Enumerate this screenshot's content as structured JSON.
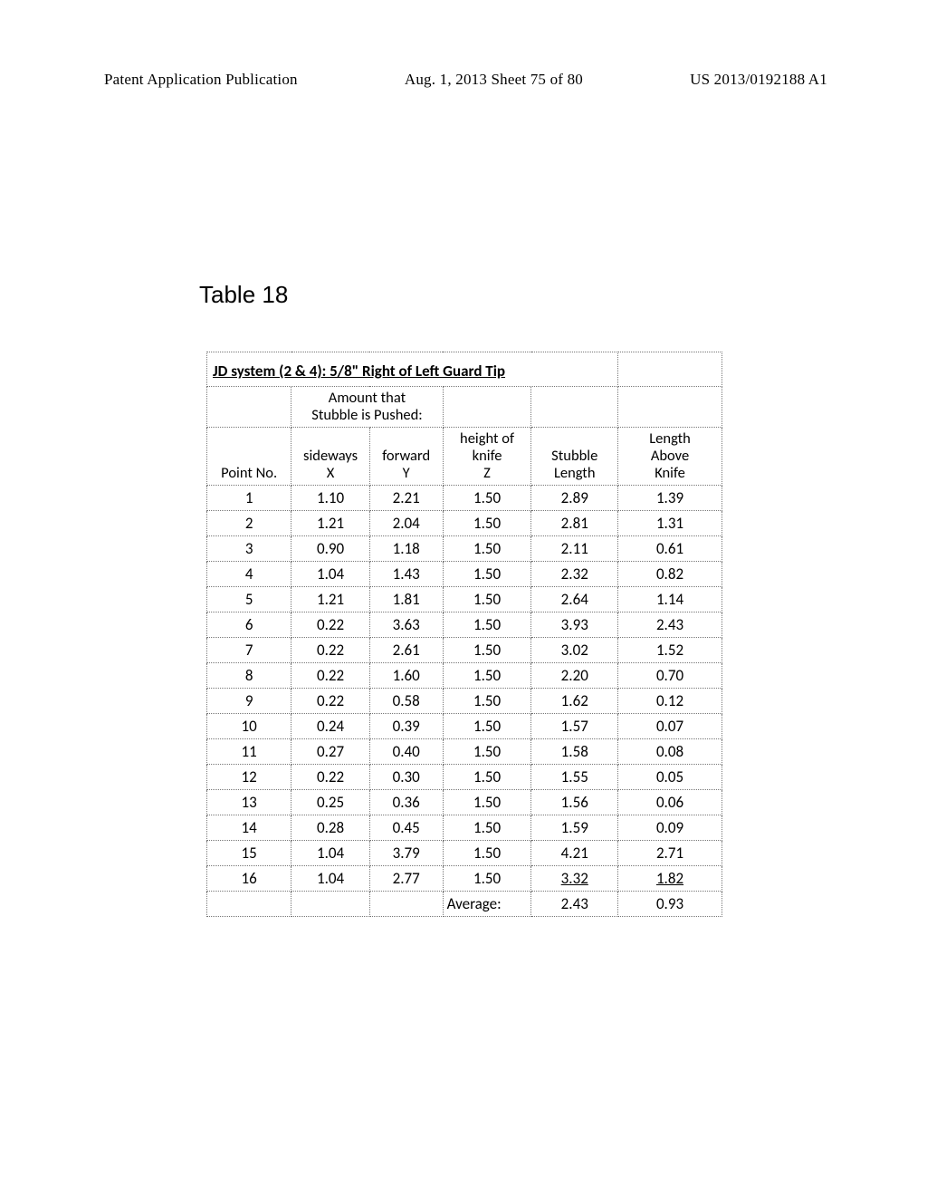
{
  "header": {
    "left": "Patent Application Publication",
    "center": "Aug. 1, 2013  Sheet 75 of 80",
    "right": "US 2013/0192188 A1"
  },
  "table": {
    "caption": "Table 18",
    "title": "JD system (2 & 4):  5/8\" Right of Left Guard Tip",
    "group_header": {
      "amount_pushed_line1": "Amount that",
      "amount_pushed_line2": "Stubble is Pushed:"
    },
    "column_headers": {
      "point_no": "Point No.",
      "sideways_line1": "sideways",
      "sideways_line2": "X",
      "forward_line1": "forward",
      "forward_line2": "Y",
      "height_line1": "height of",
      "height_line2": "knife",
      "height_line3": "Z",
      "stubble_line1": "Stubble",
      "stubble_line2": "Length",
      "length_line1": "Length",
      "length_line2": "Above",
      "length_line3": "Knife"
    },
    "rows": [
      {
        "n": "1",
        "x": "1.10",
        "y": "2.21",
        "z": "1.50",
        "s": "2.89",
        "l": "1.39"
      },
      {
        "n": "2",
        "x": "1.21",
        "y": "2.04",
        "z": "1.50",
        "s": "2.81",
        "l": "1.31"
      },
      {
        "n": "3",
        "x": "0.90",
        "y": "1.18",
        "z": "1.50",
        "s": "2.11",
        "l": "0.61"
      },
      {
        "n": "4",
        "x": "1.04",
        "y": "1.43",
        "z": "1.50",
        "s": "2.32",
        "l": "0.82"
      },
      {
        "n": "5",
        "x": "1.21",
        "y": "1.81",
        "z": "1.50",
        "s": "2.64",
        "l": "1.14"
      },
      {
        "n": "6",
        "x": "0.22",
        "y": "3.63",
        "z": "1.50",
        "s": "3.93",
        "l": "2.43"
      },
      {
        "n": "7",
        "x": "0.22",
        "y": "2.61",
        "z": "1.50",
        "s": "3.02",
        "l": "1.52"
      },
      {
        "n": "8",
        "x": "0.22",
        "y": "1.60",
        "z": "1.50",
        "s": "2.20",
        "l": "0.70"
      },
      {
        "n": "9",
        "x": "0.22",
        "y": "0.58",
        "z": "1.50",
        "s": "1.62",
        "l": "0.12"
      },
      {
        "n": "10",
        "x": "0.24",
        "y": "0.39",
        "z": "1.50",
        "s": "1.57",
        "l": "0.07"
      },
      {
        "n": "11",
        "x": "0.27",
        "y": "0.40",
        "z": "1.50",
        "s": "1.58",
        "l": "0.08"
      },
      {
        "n": "12",
        "x": "0.22",
        "y": "0.30",
        "z": "1.50",
        "s": "1.55",
        "l": "0.05"
      },
      {
        "n": "13",
        "x": "0.25",
        "y": "0.36",
        "z": "1.50",
        "s": "1.56",
        "l": "0.06"
      },
      {
        "n": "14",
        "x": "0.28",
        "y": "0.45",
        "z": "1.50",
        "s": "1.59",
        "l": "0.09"
      },
      {
        "n": "15",
        "x": "1.04",
        "y": "3.79",
        "z": "1.50",
        "s": "4.21",
        "l": "2.71"
      },
      {
        "n": "16",
        "x": "1.04",
        "y": "2.77",
        "z": "1.50",
        "s": "3.32",
        "l": "1.82",
        "underline": true
      }
    ],
    "average": {
      "label": "Average:",
      "stubble": "2.43",
      "length": "0.93"
    }
  },
  "style": {
    "page_bg": "#ffffff",
    "text_color": "#000000",
    "border_color": "#777777",
    "header_font": "Times New Roman",
    "table_font": "Calibri",
    "caption_font": "Arial",
    "caption_fontsize": 26,
    "header_fontsize": 17,
    "table_fontsize": 17
  }
}
